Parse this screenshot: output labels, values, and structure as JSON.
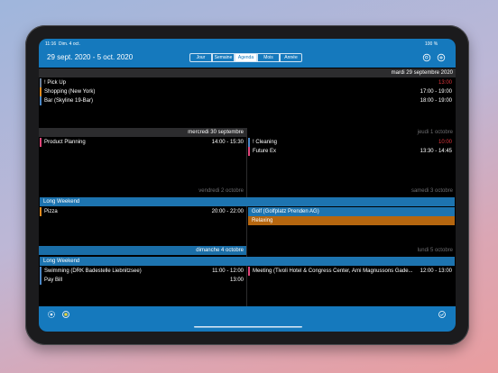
{
  "status_bar": {
    "time": "11:16",
    "date": "Dim. 4 oct.",
    "battery": "100 %"
  },
  "header": {
    "title": "29 sept. 2020 - 5 oct. 2020",
    "tabs": [
      "Jour",
      "Semaine",
      "Agenda",
      "Mois",
      "Année"
    ]
  },
  "days": [
    {
      "label": "mardi 29 septembre 2020",
      "events": [
        {
          "title": "! Pick Up",
          "time": "13:00"
        },
        {
          "title": "Shopping (New York)",
          "time": "17:00 - 19:00"
        },
        {
          "title": "Bar (Skyline 19-Bar)",
          "time": "18:00 - 19:00"
        }
      ]
    },
    {
      "label": "mercredi 30 septembre",
      "events": [
        {
          "title": "Product Planning",
          "time": "14:00 - 15:30"
        }
      ]
    },
    {
      "label": "jeudi 1 octobre",
      "events": [
        {
          "title": "! Cleaning",
          "time": "10:00"
        },
        {
          "title": "Future Ex",
          "time": "13:30 - 14:45"
        }
      ]
    },
    {
      "label": "vendredi 2 octobre",
      "all_day": [
        "Long Weekend"
      ],
      "events": [
        {
          "title": "Pizza",
          "time": "20:00 - 22:00"
        }
      ]
    },
    {
      "label": "samedi 3 octobre",
      "all_day": [
        "Golf (Golfplatz Prenden AG)",
        "Relaxing"
      ]
    },
    {
      "label": "dimanche 4 octobre",
      "all_day": [
        "Long Weekend"
      ],
      "events": [
        {
          "title": "Swimming (DRK Badestelle Liebnitzsee)",
          "time": "11:00 - 12:00"
        },
        {
          "title": "Pay Bill",
          "time": "13:00"
        }
      ]
    },
    {
      "label": "lundi 5 octobre",
      "events": [
        {
          "title": "Meeting (Tivoli Hotel & Congress Center, Arni Magnussons Gade...",
          "time": "12:00 - 13:00"
        }
      ]
    }
  ]
}
